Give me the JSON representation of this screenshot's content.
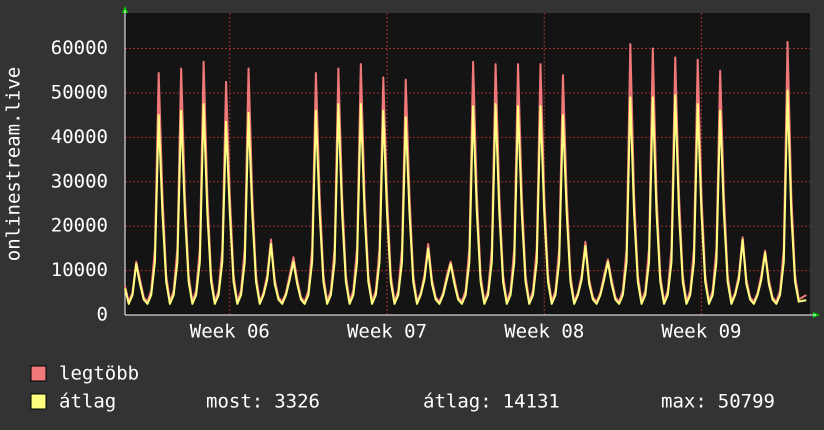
{
  "chart_data": {
    "type": "line",
    "y_label": "onlinestream.live",
    "xlim": [
      0,
      183
    ],
    "xticks": [
      {
        "value": 28,
        "label": "Week 06"
      },
      {
        "value": 70,
        "label": "Week 07"
      },
      {
        "value": 112,
        "label": "Week 08"
      },
      {
        "value": 154,
        "label": "Week 09"
      }
    ],
    "ylim": [
      0,
      68000
    ],
    "yticks": [
      0,
      10000,
      20000,
      30000,
      40000,
      50000,
      60000
    ],
    "grid": true,
    "series": [
      {
        "name": "legtöbb",
        "color": "#f07878",
        "values": [
          6500,
          3000,
          5000,
          12000,
          8000,
          4000,
          3000,
          5500,
          15000,
          54500,
          27000,
          9000,
          3000,
          5500,
          15000,
          55500,
          27000,
          9000,
          3000,
          5500,
          15000,
          57000,
          27000,
          9000,
          3000,
          5500,
          15000,
          52500,
          27000,
          9000,
          3000,
          5500,
          15000,
          55500,
          27000,
          9000,
          3000,
          5000,
          9000,
          17000,
          8000,
          4000,
          3000,
          5000,
          9000,
          13000,
          8000,
          4000,
          3000,
          5500,
          15000,
          54500,
          27000,
          9000,
          3000,
          5500,
          15000,
          55500,
          27000,
          9000,
          3000,
          5500,
          15000,
          56500,
          27000,
          9000,
          3000,
          5500,
          15000,
          53500,
          27000,
          9000,
          3000,
          5500,
          15000,
          53000,
          27000,
          9000,
          3000,
          5000,
          9000,
          16000,
          8000,
          4000,
          3000,
          5000,
          9000,
          12000,
          8000,
          4000,
          3000,
          5500,
          15000,
          57000,
          27000,
          9000,
          3000,
          5500,
          15000,
          56500,
          27000,
          9000,
          3000,
          5500,
          15000,
          56500,
          27000,
          9000,
          3000,
          5500,
          15000,
          56500,
          27000,
          9000,
          3000,
          5500,
          15000,
          54000,
          27000,
          9000,
          3000,
          5000,
          9000,
          16500,
          8000,
          4000,
          3000,
          5000,
          9000,
          12500,
          8000,
          4000,
          3000,
          5500,
          15000,
          61000,
          27000,
          9000,
          3000,
          5500,
          15000,
          60000,
          27000,
          9000,
          3000,
          5500,
          15000,
          58000,
          27000,
          9000,
          3000,
          5500,
          15000,
          57500,
          27000,
          9000,
          3000,
          5500,
          15000,
          55000,
          27000,
          9000,
          3000,
          5000,
          9000,
          17500,
          8000,
          4000,
          3000,
          5000,
          9000,
          14500,
          8000,
          4000,
          3000,
          5500,
          15000,
          61500,
          27000,
          9000,
          3500,
          4000,
          4500
        ]
      },
      {
        "name": "átlag",
        "color": "#ffff80",
        "values": [
          6000,
          2500,
          4500,
          11500,
          7000,
          3500,
          2500,
          4500,
          12000,
          45000,
          23000,
          7500,
          2500,
          4500,
          12000,
          46000,
          23000,
          7500,
          2500,
          4500,
          12000,
          47500,
          23000,
          7500,
          2500,
          4500,
          12000,
          43500,
          23000,
          7500,
          2500,
          4500,
          12000,
          45500,
          23000,
          7500,
          2500,
          4500,
          8000,
          16000,
          7000,
          3500,
          2500,
          4500,
          8000,
          12000,
          7000,
          3500,
          2500,
          4500,
          12000,
          46000,
          23000,
          7500,
          2500,
          4500,
          12000,
          47500,
          23000,
          7500,
          2500,
          4500,
          12000,
          47500,
          23000,
          7500,
          2500,
          4500,
          12000,
          46000,
          23000,
          7500,
          2500,
          4500,
          12000,
          44500,
          23000,
          7500,
          2500,
          4500,
          8000,
          15000,
          7000,
          3500,
          2500,
          4500,
          8000,
          11500,
          7000,
          3500,
          2500,
          4500,
          12000,
          47000,
          23000,
          7500,
          2500,
          4500,
          12000,
          47500,
          23000,
          7500,
          2500,
          4500,
          12000,
          47000,
          23000,
          7500,
          2500,
          4500,
          12000,
          47000,
          23000,
          7500,
          2500,
          4500,
          12000,
          45000,
          23000,
          7500,
          2500,
          4500,
          8000,
          15500,
          7000,
          3500,
          2500,
          4500,
          8000,
          12000,
          7000,
          3500,
          2500,
          4500,
          12000,
          49000,
          23000,
          7500,
          2500,
          4500,
          12000,
          49000,
          23000,
          7500,
          2500,
          4500,
          12000,
          49500,
          23000,
          7500,
          2500,
          4500,
          12000,
          47500,
          23000,
          7500,
          2500,
          4500,
          12000,
          46000,
          23000,
          7500,
          2500,
          4500,
          8000,
          17000,
          7000,
          3500,
          2500,
          4500,
          8000,
          14000,
          7000,
          3500,
          2500,
          4500,
          12000,
          50500,
          23000,
          7500,
          3000,
          3200,
          3326
        ]
      }
    ],
    "stats": [
      {
        "label": "most:",
        "value": 3326
      },
      {
        "label": "átlag:",
        "value": 14131
      },
      {
        "label": "max:",
        "value": 50799
      }
    ]
  }
}
